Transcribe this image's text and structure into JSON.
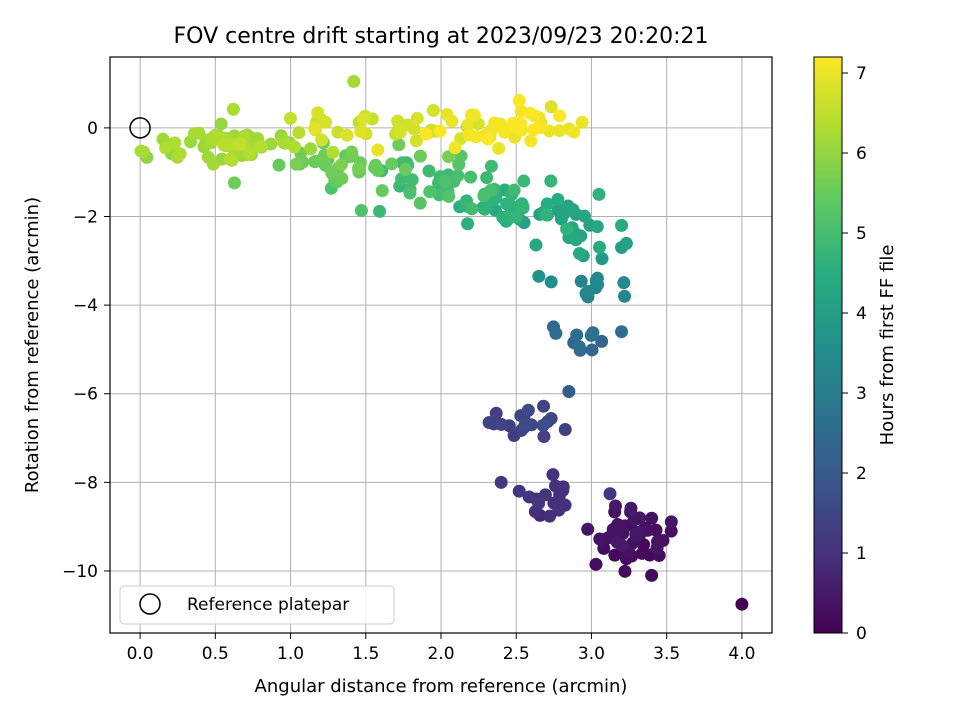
{
  "chart_data": {
    "type": "scatter",
    "title": "FOV centre drift starting at 2023/09/23 20:20:21",
    "xlabel": "Angular distance from reference (arcmin)",
    "ylabel": "Rotation from reference (arcmin)",
    "xlim": [
      -0.2,
      4.2
    ],
    "ylim": [
      -11.4,
      1.6
    ],
    "x_ticks": [
      0.0,
      0.5,
      1.0,
      1.5,
      2.0,
      2.5,
      3.0,
      3.5,
      4.0
    ],
    "x_tick_labels": [
      "0.0",
      "0.5",
      "1.0",
      "1.5",
      "2.0",
      "2.5",
      "3.0",
      "3.5",
      "4.0"
    ],
    "y_ticks": [
      0,
      -2,
      -4,
      -6,
      -8,
      -10
    ],
    "y_tick_labels": [
      "0",
      "−2",
      "−4",
      "−6",
      "−8",
      "−10"
    ],
    "grid": true,
    "colorbar": {
      "label": "Hours from first FF file",
      "colormap": "viridis",
      "range": [
        0,
        7.2
      ],
      "ticks": [
        0,
        1,
        2,
        3,
        4,
        5,
        6,
        7
      ],
      "tick_labels": [
        "0",
        "1",
        "2",
        "3",
        "4",
        "5",
        "6",
        "7"
      ]
    },
    "legend": {
      "position": "lower-left",
      "entries": [
        "Reference platepar"
      ]
    },
    "reference": {
      "x": 0.0,
      "y": 0.0,
      "label": "Reference platepar"
    },
    "clusters": [
      {
        "x": 3.25,
        "y": -9.2,
        "sx": 0.12,
        "sy": 0.3,
        "t": 0.3,
        "n": 44
      },
      {
        "x": 4.0,
        "y": -10.75,
        "sx": 0,
        "sy": 0,
        "t": 0.05,
        "n": 1
      },
      {
        "x": 2.75,
        "y": -8.4,
        "sx": 0.12,
        "sy": 0.22,
        "t": 1.0,
        "n": 18
      },
      {
        "x": 2.6,
        "y": -6.7,
        "sx": 0.1,
        "sy": 0.22,
        "t": 1.45,
        "n": 18
      },
      {
        "x": 2.95,
        "y": -4.6,
        "sx": 0.12,
        "sy": 0.25,
        "t": 2.5,
        "n": 10
      },
      {
        "x": 3.0,
        "y": -3.6,
        "sx": 0.1,
        "sy": 0.35,
        "t": 3.3,
        "n": 10
      },
      {
        "x": 2.8,
        "y": -2.2,
        "sx": 0.18,
        "sy": 0.35,
        "t": 4.2,
        "n": 24
      },
      {
        "x": 2.45,
        "y": -1.8,
        "sx": 0.22,
        "sy": 0.25,
        "t": 4.6,
        "n": 30
      },
      {
        "x": 2.0,
        "y": -1.25,
        "sx": 0.25,
        "sy": 0.25,
        "t": 5.0,
        "n": 36
      },
      {
        "x": 1.3,
        "y": -0.85,
        "sx": 0.25,
        "sy": 0.22,
        "t": 5.55,
        "n": 34
      },
      {
        "x": 0.6,
        "y": -0.4,
        "sx": 0.25,
        "sy": 0.2,
        "t": 6.2,
        "n": 60
      },
      {
        "x": 1.6,
        "y": 0.0,
        "sx": 0.35,
        "sy": 0.15,
        "t": 6.7,
        "n": 34
      },
      {
        "x": 2.35,
        "y": 0.0,
        "sx": 0.25,
        "sy": 0.18,
        "t": 7.05,
        "n": 44
      }
    ],
    "extra_points": [
      {
        "x": 1.42,
        "y": 1.05,
        "t": 6.2
      },
      {
        "x": 0.62,
        "y": 0.42,
        "t": 6.3
      },
      {
        "x": 2.52,
        "y": 0.62,
        "t": 7.2
      },
      {
        "x": 1.58,
        "y": -0.5,
        "t": 6.95
      },
      {
        "x": 2.4,
        "y": -8.0,
        "t": 1.2
      },
      {
        "x": 2.52,
        "y": -8.2,
        "t": 1.1
      },
      {
        "x": 2.32,
        "y": -6.65,
        "t": 1.45
      },
      {
        "x": 2.65,
        "y": -3.35,
        "t": 3.6
      },
      {
        "x": 3.22,
        "y": -3.8,
        "t": 3.3
      },
      {
        "x": 3.05,
        "y": -1.5,
        "t": 4.6
      },
      {
        "x": 3.2,
        "y": -2.2,
        "t": 4.4
      },
      {
        "x": 3.07,
        "y": -2.95,
        "t": 3.85
      },
      {
        "x": 3.2,
        "y": -4.6,
        "t": 2.6
      },
      {
        "x": 2.85,
        "y": -5.95,
        "t": 2.1
      },
      {
        "x": 3.03,
        "y": -9.85,
        "t": 0.2
      },
      {
        "x": 3.4,
        "y": -10.1,
        "t": 0.2
      },
      {
        "x": 3.45,
        "y": -9.65,
        "t": 0.25
      },
      {
        "x": 3.53,
        "y": -9.1,
        "t": 0.3
      },
      {
        "x": 2.05,
        "y": -0.65,
        "t": 5.7
      },
      {
        "x": 2.55,
        "y": -1.2,
        "t": 4.85
      },
      {
        "x": 2.73,
        "y": -1.2,
        "t": 4.7
      },
      {
        "x": 3.2,
        "y": -2.7,
        "t": 4.0
      }
    ]
  }
}
